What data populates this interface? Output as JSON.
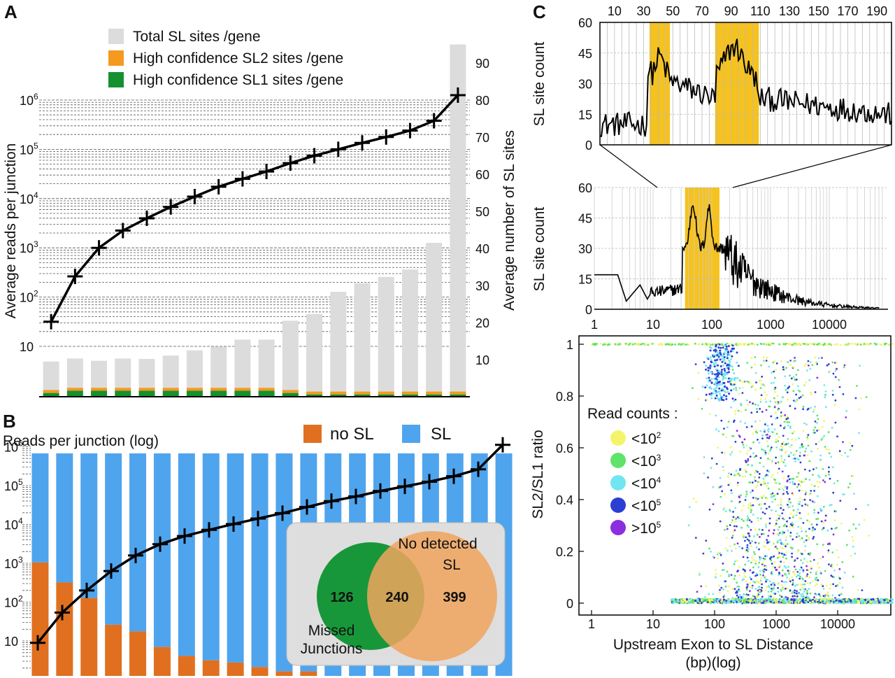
{
  "panel_labels": [
    "A",
    "B",
    "C"
  ],
  "chart_data": [
    {
      "id": "A",
      "type": "bar",
      "ylabel_left": "Average reads per junction",
      "ylabel_right": "Average number of SL sites",
      "left_ticks": [
        "10",
        "10^2",
        "10^3",
        "10^4",
        "10^5",
        "10^6"
      ],
      "right_ticks": [
        "10",
        "20",
        "30",
        "40",
        "50",
        "60",
        "70",
        "80",
        "90"
      ],
      "legend": [
        "Total SL sites /gene",
        "High confidence SL2 sites /gene",
        "High confidence SL1 sites /gene"
      ],
      "colors": {
        "total": "#dcdcdc",
        "sl2": "#f39a1f",
        "sl1": "#15902f",
        "line": "#000000"
      },
      "n_bins": 18,
      "series": [
        {
          "name": "Total SL sites /gene",
          "values": [
            9.5,
            10.3,
            9.7,
            10.3,
            10.2,
            11.1,
            12.5,
            13.5,
            15.4,
            15.4,
            20.5,
            22.3,
            28.3,
            30.6,
            32.3,
            34.3,
            41.5,
            95
          ]
        },
        {
          "name": "High confidence SL2 sites /gene",
          "values": [
            0.8,
            0.8,
            0.8,
            0.8,
            0.8,
            0.8,
            0.8,
            0.8,
            0.8,
            0.8,
            0.8,
            0.8,
            0.8,
            0.8,
            0.8,
            0.8,
            0.8,
            0.8
          ]
        },
        {
          "name": "High confidence SL1 sites /gene",
          "values": [
            1.0,
            1.6,
            1.6,
            1.6,
            1.6,
            1.6,
            1.6,
            1.6,
            1.6,
            1.6,
            1.0,
            0.6,
            0.6,
            0.6,
            0.6,
            0.6,
            0.6,
            0.6
          ]
        }
      ],
      "reads_log10": [
        1.5,
        2.42,
        3.0,
        3.35,
        3.6,
        3.83,
        4.04,
        4.24,
        4.4,
        4.55,
        4.72,
        4.87,
        5.0,
        5.13,
        5.25,
        5.38,
        5.58,
        6.1
      ]
    },
    {
      "id": "B",
      "type": "bar",
      "ylabel": "Reads per junction (log)",
      "left_ticks": [
        "10",
        "10^2",
        "10^3",
        "10^4",
        "10^5",
        "10^6"
      ],
      "legend": [
        "no SL",
        "SL"
      ],
      "colors": {
        "no_sl": "#e07020",
        "sl": "#4fa4ee",
        "line": "#000000"
      },
      "n_bins": 20,
      "no_sl_fraction": [
        0.51,
        0.42,
        0.35,
        0.23,
        0.2,
        0.13,
        0.09,
        0.07,
        0.06,
        0.04,
        0.02,
        0.02,
        0.0,
        0.0,
        0.0,
        0.0,
        0.0,
        0.0,
        0.0,
        0.0
      ],
      "reads_log10": [
        0.95,
        1.73,
        2.3,
        2.8,
        3.2,
        3.49,
        3.7,
        3.86,
        4.01,
        4.15,
        4.29,
        4.45,
        4.6,
        4.72,
        4.86,
        4.98,
        5.1,
        5.24,
        5.42,
        6.05
      ],
      "venn": {
        "labels": [
          "Missed\nJunctions",
          "No detected\nSL"
        ],
        "only_missed": "126",
        "both": "240",
        "only_no_sl": "399",
        "colors": [
          "#18973a",
          "#f0a55e"
        ]
      }
    },
    {
      "id": "C_top",
      "type": "line",
      "ylabel": "SL site count",
      "x_ticks_top": [
        "10",
        "30",
        "50",
        "70",
        "90",
        "110",
        "130",
        "150",
        "170",
        "190"
      ],
      "xlim": [
        0,
        200
      ],
      "ylim": [
        0,
        60
      ],
      "y_ticks": [
        "0",
        "15",
        "30",
        "45",
        "60"
      ],
      "highlight_ranges": [
        [
          34,
          48
        ],
        [
          79,
          109
        ]
      ],
      "highlight_color": "#f6c21d"
    },
    {
      "id": "C_middle",
      "type": "line",
      "ylabel": "SL site count",
      "x_scale": "log",
      "x_ticks": [
        "1",
        "10",
        "100",
        "1000",
        "10000"
      ],
      "ylim": [
        0,
        60
      ],
      "y_ticks": [
        "0",
        "15",
        "30",
        "45",
        "60"
      ],
      "highlight_range": [
        35,
        135
      ],
      "highlight_color": "#f6c21d"
    },
    {
      "id": "C_bottom",
      "type": "scatter",
      "xlabel": "Upstream Exon to SL Distance\n(bp)(log)",
      "ylabel": "SL2/SL1 ratio",
      "x_scale": "log",
      "x_ticks": [
        "1",
        "10",
        "100",
        "1000",
        "10000"
      ],
      "y_ticks": [
        "0",
        "0.2",
        "0.4",
        "0.6",
        "0.8",
        "1"
      ],
      "ylim": [
        0,
        1
      ],
      "legend_title": "Read counts :",
      "legend": [
        {
          "label": "<10^2",
          "color": "#f4f46a"
        },
        {
          "label": "<10^3",
          "color": "#5fe36a"
        },
        {
          "label": "<10^4",
          "color": "#72e6f0"
        },
        {
          "label": "<10^5",
          "color": "#2c3fd3"
        },
        {
          "label": ">10^5",
          "color": "#8a2ee0"
        }
      ]
    }
  ]
}
